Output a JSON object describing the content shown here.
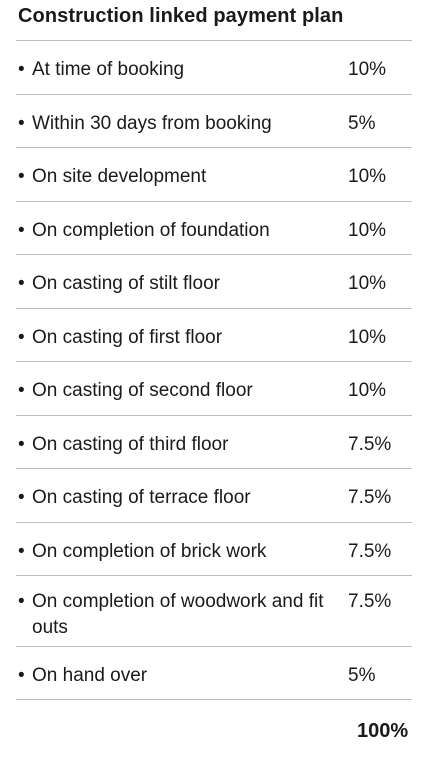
{
  "title": "Construction linked payment plan",
  "rows": [
    {
      "bullet": "•",
      "label": "At time of booking",
      "pct": "10%"
    },
    {
      "bullet": "•",
      "label": "Within 30 days from booking",
      "pct": "5%"
    },
    {
      "bullet": "•",
      "label": "On site development",
      "pct": "10%"
    },
    {
      "bullet": "•",
      "label": "On completion of foundation",
      "pct": "10%"
    },
    {
      "bullet": "•",
      "label": "On casting of stilt floor",
      "pct": "10%"
    },
    {
      "bullet": "•",
      "label": "On casting of first floor",
      "pct": "10%"
    },
    {
      "bullet": "•",
      "label": "On casting of second floor",
      "pct": "10%"
    },
    {
      "bullet": "•",
      "label": "On casting of third floor",
      "pct": "7.5%"
    },
    {
      "bullet": "•",
      "label": "On casting of terrace floor",
      "pct": "7.5%"
    },
    {
      "bullet": "•",
      "label": "On completion of brick work",
      "pct": "7.5%"
    },
    {
      "bullet": "•",
      "label": "On completion of woodwork and fit outs",
      "pct": "7.5%"
    },
    {
      "bullet": "•",
      "label": "On hand over",
      "pct": "5%"
    }
  ],
  "total": "100%"
}
